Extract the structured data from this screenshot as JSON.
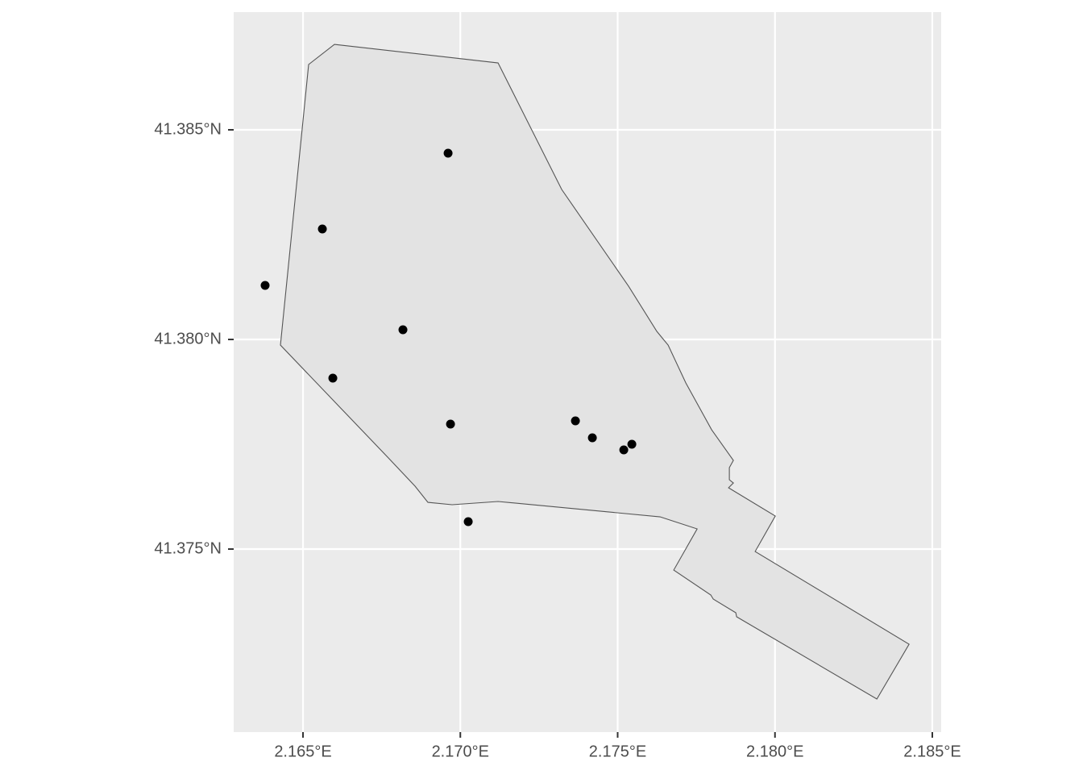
{
  "chart_data": {
    "type": "scatter",
    "xlim": [
      2.162797,
      2.185282
    ],
    "ylim": [
      41.370635,
      41.387808
    ],
    "xticks": [
      {
        "value": 2.165,
        "label": "2.165°E"
      },
      {
        "value": 2.17,
        "label": "2.170°E"
      },
      {
        "value": 2.175,
        "label": "2.175°E"
      },
      {
        "value": 2.18,
        "label": "2.180°E"
      },
      {
        "value": 2.185,
        "label": "2.185°E"
      }
    ],
    "yticks": [
      {
        "value": 41.375,
        "label": "41.375°N"
      },
      {
        "value": 41.38,
        "label": "41.380°N"
      },
      {
        "value": 41.385,
        "label": "41.385°N"
      }
    ],
    "grid": true,
    "polygon": {
      "fill": "#e3e3e3",
      "color": "#555555",
      "x": [
        2.165999,
        2.171199,
        2.173222,
        2.175348,
        2.176245,
        2.176604,
        2.177167,
        2.177987,
        2.178678,
        2.17855,
        2.17855,
        2.178678,
        2.178525,
        2.18001,
        2.17937,
        2.184262,
        2.183238,
        2.178781,
        2.178755,
        2.178038,
        2.177961,
        2.176783,
        2.177526,
        2.176347,
        2.171199,
        2.169739,
        2.16897,
        2.168561,
        2.16769,
        2.164283,
        2.165179
      ],
      "y": [
        41.387038,
        41.386596,
        41.383577,
        41.381269,
        41.380192,
        41.379865,
        41.378962,
        41.377846,
        41.377115,
        41.376942,
        41.376654,
        41.376577,
        41.376462,
        41.375788,
        41.374942,
        41.372731,
        41.371423,
        41.373385,
        41.373481,
        41.373808,
        41.373904,
        41.3745,
        41.375481,
        41.375769,
        41.376135,
        41.376058,
        41.376115,
        41.3765,
        41.377192,
        41.379865,
        41.386558
      ]
    },
    "series": [
      {
        "color": "#000000",
        "x": [
          2.169611,
          2.165615,
          2.163796,
          2.168176,
          2.165948,
          2.169688,
          2.173658,
          2.174196,
          2.175195,
          2.175451,
          2.170251
        ],
        "values": [
          41.384442,
          41.382635,
          41.381288,
          41.380231,
          41.379077,
          41.377981,
          41.378058,
          41.377654,
          41.377365,
          41.3775,
          41.375654
        ]
      }
    ]
  }
}
